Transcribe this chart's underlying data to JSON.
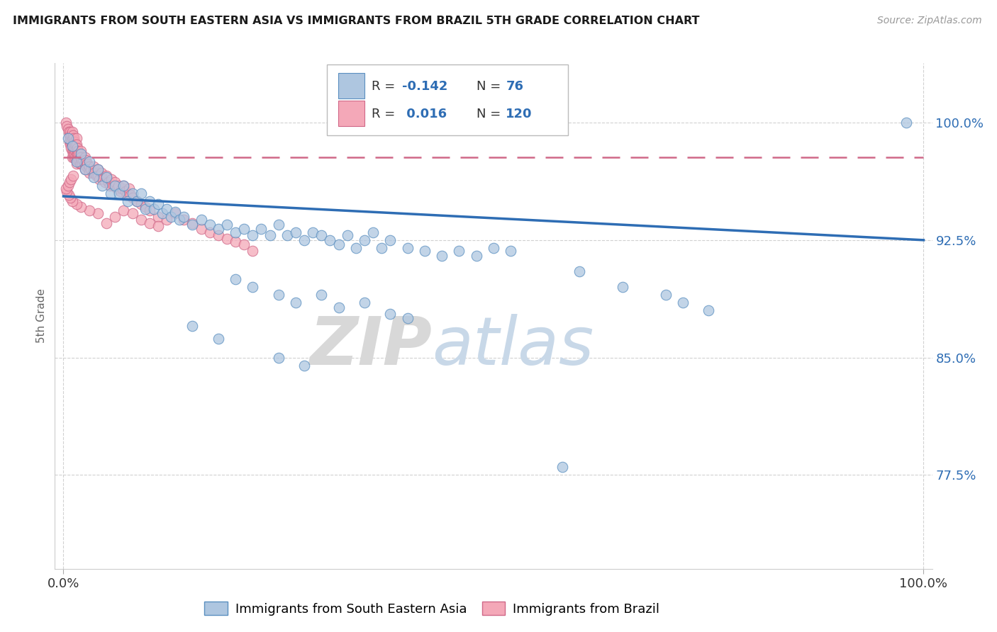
{
  "title": "IMMIGRANTS FROM SOUTH EASTERN ASIA VS IMMIGRANTS FROM BRAZIL 5TH GRADE CORRELATION CHART",
  "source": "Source: ZipAtlas.com",
  "ylabel": "5th Grade",
  "ytick_labels": [
    "77.5%",
    "85.0%",
    "92.5%",
    "100.0%"
  ],
  "ytick_values": [
    0.775,
    0.85,
    0.925,
    1.0
  ],
  "ylim": [
    0.715,
    1.038
  ],
  "xlim": [
    -0.01,
    1.01
  ],
  "R_blue": -0.142,
  "N_blue": 76,
  "R_pink": 0.016,
  "N_pink": 120,
  "blue_face": "#aec6e0",
  "blue_edge": "#5a8fc0",
  "pink_face": "#f4a8b8",
  "pink_edge": "#d06888",
  "blue_line": "#2e6db4",
  "pink_line": "#d06888",
  "watermark_zip": "ZIP",
  "watermark_atlas": "atlas",
  "bg": "#ffffff",
  "grid_color": "#cccccc",
  "blue_line_y0": 0.953,
  "blue_line_y1": 0.925,
  "pink_line_y0": 0.978,
  "pink_line_y1": 0.978,
  "blue_scatter": [
    [
      0.005,
      0.99
    ],
    [
      0.01,
      0.985
    ],
    [
      0.015,
      0.975
    ],
    [
      0.02,
      0.98
    ],
    [
      0.025,
      0.97
    ],
    [
      0.03,
      0.975
    ],
    [
      0.035,
      0.965
    ],
    [
      0.04,
      0.97
    ],
    [
      0.045,
      0.96
    ],
    [
      0.05,
      0.965
    ],
    [
      0.055,
      0.955
    ],
    [
      0.06,
      0.96
    ],
    [
      0.065,
      0.955
    ],
    [
      0.07,
      0.96
    ],
    [
      0.075,
      0.95
    ],
    [
      0.08,
      0.955
    ],
    [
      0.085,
      0.95
    ],
    [
      0.09,
      0.955
    ],
    [
      0.095,
      0.945
    ],
    [
      0.1,
      0.95
    ],
    [
      0.105,
      0.945
    ],
    [
      0.11,
      0.948
    ],
    [
      0.115,
      0.942
    ],
    [
      0.12,
      0.945
    ],
    [
      0.125,
      0.94
    ],
    [
      0.13,
      0.943
    ],
    [
      0.135,
      0.938
    ],
    [
      0.14,
      0.94
    ],
    [
      0.15,
      0.935
    ],
    [
      0.16,
      0.938
    ],
    [
      0.17,
      0.935
    ],
    [
      0.18,
      0.932
    ],
    [
      0.19,
      0.935
    ],
    [
      0.2,
      0.93
    ],
    [
      0.21,
      0.932
    ],
    [
      0.22,
      0.928
    ],
    [
      0.23,
      0.932
    ],
    [
      0.24,
      0.928
    ],
    [
      0.25,
      0.935
    ],
    [
      0.26,
      0.928
    ],
    [
      0.27,
      0.93
    ],
    [
      0.28,
      0.925
    ],
    [
      0.29,
      0.93
    ],
    [
      0.3,
      0.928
    ],
    [
      0.31,
      0.925
    ],
    [
      0.32,
      0.922
    ],
    [
      0.33,
      0.928
    ],
    [
      0.34,
      0.92
    ],
    [
      0.35,
      0.925
    ],
    [
      0.36,
      0.93
    ],
    [
      0.37,
      0.92
    ],
    [
      0.38,
      0.925
    ],
    [
      0.4,
      0.92
    ],
    [
      0.42,
      0.918
    ],
    [
      0.44,
      0.915
    ],
    [
      0.46,
      0.918
    ],
    [
      0.48,
      0.915
    ],
    [
      0.5,
      0.92
    ],
    [
      0.52,
      0.918
    ],
    [
      0.2,
      0.9
    ],
    [
      0.22,
      0.895
    ],
    [
      0.25,
      0.89
    ],
    [
      0.27,
      0.885
    ],
    [
      0.3,
      0.89
    ],
    [
      0.32,
      0.882
    ],
    [
      0.35,
      0.885
    ],
    [
      0.38,
      0.878
    ],
    [
      0.4,
      0.875
    ],
    [
      0.15,
      0.87
    ],
    [
      0.18,
      0.862
    ],
    [
      0.25,
      0.85
    ],
    [
      0.28,
      0.845
    ],
    [
      0.6,
      0.905
    ],
    [
      0.65,
      0.895
    ],
    [
      0.7,
      0.89
    ],
    [
      0.72,
      0.885
    ],
    [
      0.75,
      0.88
    ],
    [
      0.98,
      1.0
    ],
    [
      0.58,
      0.78
    ]
  ],
  "pink_scatter": [
    [
      0.003,
      1.0
    ],
    [
      0.004,
      0.998
    ],
    [
      0.005,
      0.996
    ],
    [
      0.006,
      0.994
    ],
    [
      0.007,
      0.992
    ],
    [
      0.007,
      0.988
    ],
    [
      0.008,
      0.994
    ],
    [
      0.008,
      0.99
    ],
    [
      0.008,
      0.986
    ],
    [
      0.009,
      0.992
    ],
    [
      0.009,
      0.988
    ],
    [
      0.009,
      0.984
    ],
    [
      0.01,
      0.994
    ],
    [
      0.01,
      0.99
    ],
    [
      0.01,
      0.986
    ],
    [
      0.01,
      0.982
    ],
    [
      0.01,
      0.978
    ],
    [
      0.011,
      0.992
    ],
    [
      0.011,
      0.988
    ],
    [
      0.011,
      0.984
    ],
    [
      0.011,
      0.98
    ],
    [
      0.012,
      0.99
    ],
    [
      0.012,
      0.986
    ],
    [
      0.012,
      0.982
    ],
    [
      0.012,
      0.978
    ],
    [
      0.013,
      0.988
    ],
    [
      0.013,
      0.984
    ],
    [
      0.013,
      0.98
    ],
    [
      0.014,
      0.986
    ],
    [
      0.014,
      0.982
    ],
    [
      0.014,
      0.978
    ],
    [
      0.015,
      0.99
    ],
    [
      0.015,
      0.986
    ],
    [
      0.015,
      0.982
    ],
    [
      0.015,
      0.978
    ],
    [
      0.015,
      0.974
    ],
    [
      0.016,
      0.984
    ],
    [
      0.016,
      0.98
    ],
    [
      0.016,
      0.976
    ],
    [
      0.017,
      0.982
    ],
    [
      0.017,
      0.978
    ],
    [
      0.018,
      0.98
    ],
    [
      0.018,
      0.976
    ],
    [
      0.019,
      0.978
    ],
    [
      0.019,
      0.974
    ],
    [
      0.02,
      0.982
    ],
    [
      0.02,
      0.978
    ],
    [
      0.02,
      0.974
    ],
    [
      0.021,
      0.976
    ],
    [
      0.022,
      0.974
    ],
    [
      0.023,
      0.976
    ],
    [
      0.024,
      0.974
    ],
    [
      0.025,
      0.978
    ],
    [
      0.025,
      0.974
    ],
    [
      0.025,
      0.97
    ],
    [
      0.026,
      0.976
    ],
    [
      0.027,
      0.972
    ],
    [
      0.028,
      0.974
    ],
    [
      0.029,
      0.97
    ],
    [
      0.03,
      0.972
    ],
    [
      0.03,
      0.968
    ],
    [
      0.032,
      0.97
    ],
    [
      0.034,
      0.968
    ],
    [
      0.035,
      0.972
    ],
    [
      0.036,
      0.968
    ],
    [
      0.038,
      0.966
    ],
    [
      0.04,
      0.97
    ],
    [
      0.04,
      0.966
    ],
    [
      0.042,
      0.964
    ],
    [
      0.044,
      0.968
    ],
    [
      0.046,
      0.964
    ],
    [
      0.048,
      0.962
    ],
    [
      0.05,
      0.966
    ],
    [
      0.052,
      0.962
    ],
    [
      0.054,
      0.96
    ],
    [
      0.056,
      0.964
    ],
    [
      0.058,
      0.96
    ],
    [
      0.06,
      0.962
    ],
    [
      0.062,
      0.958
    ],
    [
      0.064,
      0.96
    ],
    [
      0.066,
      0.956
    ],
    [
      0.068,
      0.958
    ],
    [
      0.07,
      0.96
    ],
    [
      0.072,
      0.956
    ],
    [
      0.074,
      0.954
    ],
    [
      0.076,
      0.958
    ],
    [
      0.078,
      0.954
    ],
    [
      0.08,
      0.952
    ],
    [
      0.085,
      0.95
    ],
    [
      0.09,
      0.948
    ],
    [
      0.095,
      0.946
    ],
    [
      0.1,
      0.944
    ],
    [
      0.11,
      0.94
    ],
    [
      0.12,
      0.938
    ],
    [
      0.13,
      0.942
    ],
    [
      0.14,
      0.938
    ],
    [
      0.15,
      0.936
    ],
    [
      0.16,
      0.932
    ],
    [
      0.17,
      0.93
    ],
    [
      0.18,
      0.928
    ],
    [
      0.19,
      0.926
    ],
    [
      0.2,
      0.924
    ],
    [
      0.21,
      0.922
    ],
    [
      0.22,
      0.918
    ],
    [
      0.07,
      0.944
    ],
    [
      0.08,
      0.942
    ],
    [
      0.09,
      0.938
    ],
    [
      0.1,
      0.936
    ],
    [
      0.11,
      0.934
    ],
    [
      0.05,
      0.936
    ],
    [
      0.06,
      0.94
    ],
    [
      0.04,
      0.942
    ],
    [
      0.03,
      0.944
    ],
    [
      0.02,
      0.946
    ],
    [
      0.015,
      0.948
    ],
    [
      0.01,
      0.95
    ],
    [
      0.008,
      0.952
    ],
    [
      0.006,
      0.954
    ],
    [
      0.004,
      0.956
    ],
    [
      0.003,
      0.958
    ],
    [
      0.005,
      0.96
    ],
    [
      0.007,
      0.962
    ],
    [
      0.009,
      0.964
    ],
    [
      0.011,
      0.966
    ]
  ]
}
